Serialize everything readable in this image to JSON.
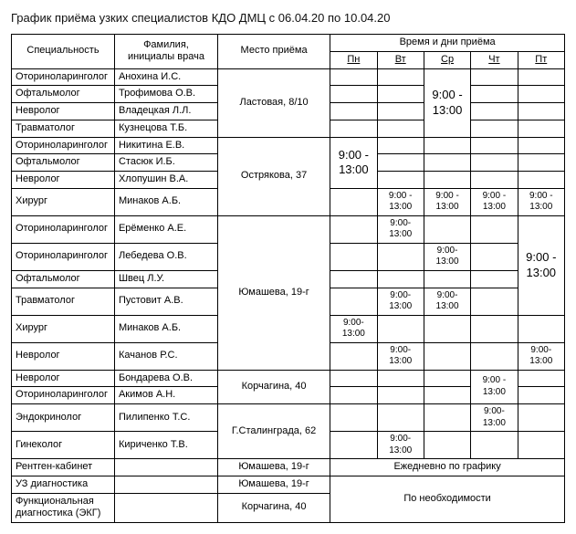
{
  "title": "График приёма узких специалистов  КДО ДМЦ с 06.04.20 по 10.04.20",
  "headers": {
    "spec": "Специальность",
    "doc": "Фамилия, инициалы врача",
    "place": "Место приёма",
    "time_days": "Время и дни приёма",
    "days": [
      "Пн",
      "Вт",
      "Ср",
      "Чт",
      "Пт"
    ]
  },
  "group1": {
    "place": "Ластовая, 8/10",
    "time": "9:00 - 13:00",
    "rows": [
      {
        "spec": "Оториноларинголог",
        "doc": "Анохина И.С."
      },
      {
        "spec": "Офтальмолог",
        "doc": "Трофимова О.В."
      },
      {
        "spec": "Невролог",
        "doc": "Владецкая Л.Л."
      },
      {
        "spec": "Травматолог",
        "doc": "Кузнецова Т.Б."
      }
    ]
  },
  "group2": {
    "place": "Острякова, 37",
    "time": "9:00 - 13:00",
    "rows": [
      {
        "spec": "Оториноларинголог",
        "doc": "Никитина Е.В."
      },
      {
        "spec": "Офтальмолог",
        "doc": "Стасюк И.Б."
      },
      {
        "spec": "Невролог",
        "doc": "Хлопушин В.А."
      }
    ]
  },
  "surgeon1": {
    "spec": "Хирург",
    "doc": "Минаков А.Б.",
    "cells": [
      "",
      "9:00 - 13:00",
      "9:00 - 13:00",
      "9:00 - 13:00",
      "9:00 - 13:00"
    ]
  },
  "group3": {
    "place": "Юмашева, 19-г",
    "time": "9:00 - 13:00",
    "rows": [
      {
        "spec": "Оториноларинголог",
        "doc": "Ерёменко А.Е.",
        "vt": "9:00-13:00"
      },
      {
        "spec": "Оториноларинголог",
        "doc": "Лебедева О.В.",
        "sr": "9:00-13:00"
      },
      {
        "spec": "Офтальмолог",
        "doc": "Швец Л.У."
      },
      {
        "spec": "Травматолог",
        "doc": "Пустовит А.В.",
        "vt": "9:00-13:00",
        "sr": "9:00-13:00"
      }
    ]
  },
  "surgeon2": {
    "spec": "Хирург",
    "doc": "Минаков А.Б.",
    "pn": "9:00-13:00"
  },
  "nevr": {
    "spec": "Невролог",
    "doc": "Качанов Р.С.",
    "vt": "9:00-13:00",
    "pt": "9:00-13:00"
  },
  "group4": {
    "place": "Корчагина, 40",
    "rows": [
      {
        "spec": "Невролог",
        "doc": "Бондарева О.В.",
        "cht": "9:00 - 13:00"
      },
      {
        "spec": "Оториноларинголог",
        "doc": "Акимов А.Н."
      }
    ]
  },
  "group5": {
    "place": "Г.Сталинграда, 62",
    "rows": [
      {
        "spec": "Эндокринолог",
        "doc": "Пилипенко Т.С.",
        "cht": "9:00-13:00"
      },
      {
        "spec": "Гинеколог",
        "doc": "Кириченко Т.В.",
        "vt": "9:00-13:00"
      }
    ]
  },
  "xray": {
    "spec": "Рентген-кабинет",
    "doc": "",
    "place": "Юмашева, 19-г",
    "note": "Ежедневно по графику"
  },
  "diag": {
    "rows": [
      {
        "spec": "УЗ диагностика",
        "place": "Юмашева, 19-г"
      },
      {
        "spec": "Функциональная диагностика (ЭКГ)",
        "place": "Корчагина, 40"
      }
    ],
    "note": "По необходимости"
  }
}
